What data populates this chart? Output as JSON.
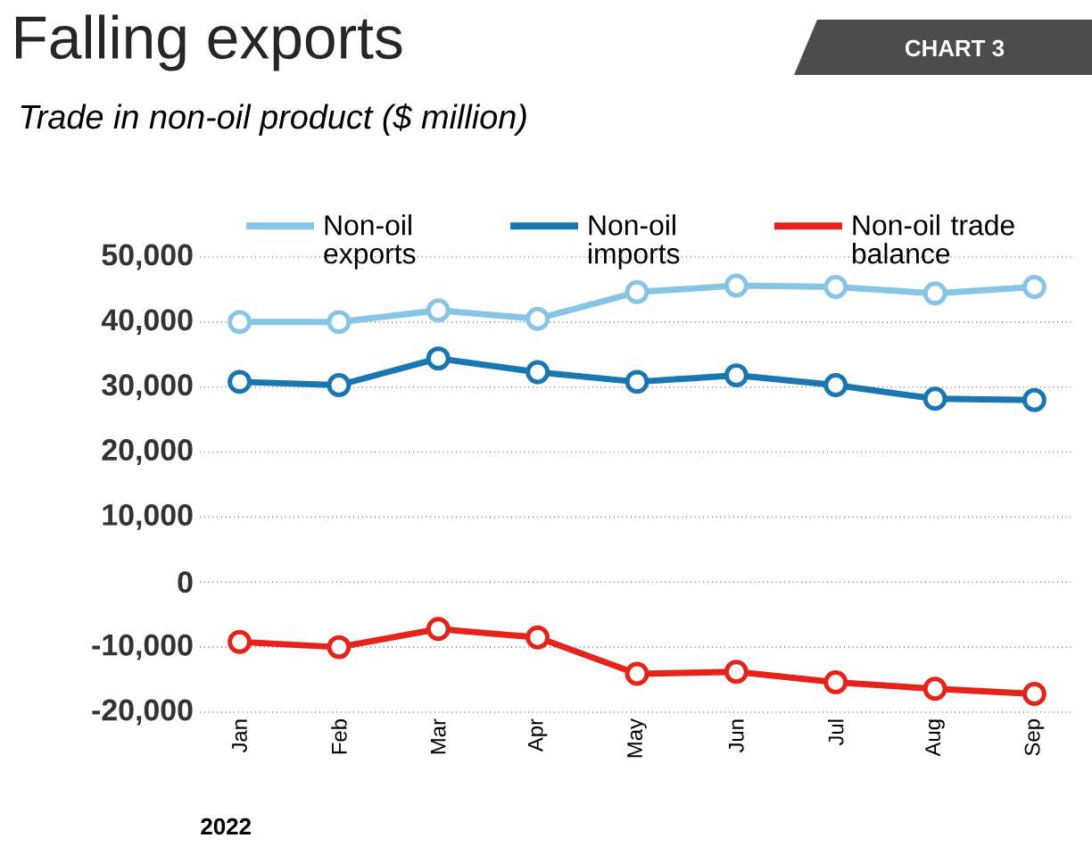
{
  "chart_data": {
    "type": "line",
    "title": "Falling exports",
    "subtitle": "Trade in non-oil product ($ million)",
    "annotations": [
      "CHART 3",
      "2022"
    ],
    "categories": [
      "Jan",
      "Feb",
      "Mar",
      "Apr",
      "May",
      "Jun",
      "Jul",
      "Aug",
      "Sep"
    ],
    "series": [
      {
        "name": "Non-oil exports",
        "color": "#86c5e6",
        "values": [
          40000,
          40000,
          41800,
          40500,
          44600,
          45600,
          45400,
          44400,
          45400
        ]
      },
      {
        "name": "Non-oil imports",
        "color": "#1877b0",
        "values": [
          30800,
          30300,
          34400,
          32300,
          30800,
          31800,
          30300,
          28200,
          28000
        ]
      },
      {
        "name": "Non-oil trade balance",
        "color": "#e5231b",
        "values": [
          -9200,
          -10000,
          -7200,
          -8500,
          -14100,
          -13800,
          -15400,
          -16400,
          -17200
        ]
      }
    ],
    "ylim": [
      -20000,
      50000
    ],
    "yticks": [
      {
        "value": 50000,
        "label": "50,000"
      },
      {
        "value": 40000,
        "label": "40,000"
      },
      {
        "value": 30000,
        "label": "30,000"
      },
      {
        "value": 20000,
        "label": "20,000"
      },
      {
        "value": 10000,
        "label": "10,000"
      },
      0,
      {
        "value": -10000,
        "label": "-10,000"
      },
      {
        "value": -20000,
        "label": "-20,000"
      }
    ],
    "grid": "y",
    "legend": "top",
    "marker": "circle"
  }
}
